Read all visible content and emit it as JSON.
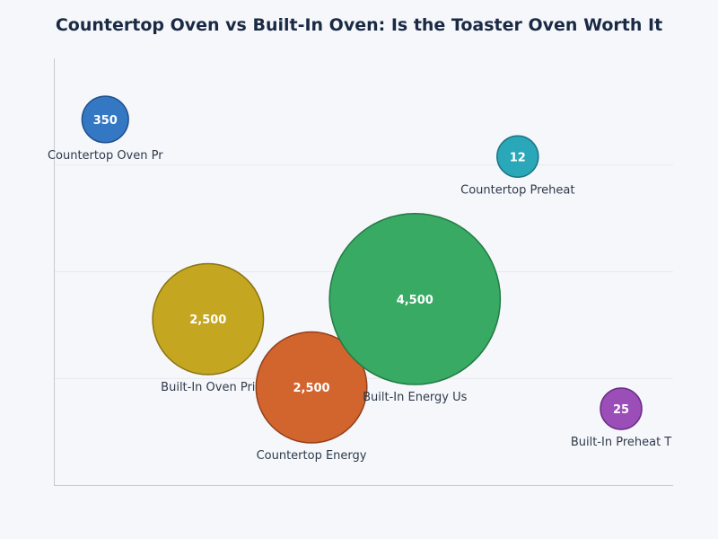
{
  "chart_data": {
    "type": "bubble",
    "title": "Countertop Oven vs Built-In Oven: Is the Toaster Oven Worth It",
    "xlabel": "",
    "ylabel": "",
    "xlim": [
      0,
      100
    ],
    "ylim": [
      0,
      100
    ],
    "grid": "horizontal",
    "points": [
      {
        "label": "Countertop Oven Pr",
        "value": 350,
        "value_label": "350",
        "x": 8.3,
        "y": 85.7,
        "color": "#3478c4",
        "stroke": "#1f4f8a"
      },
      {
        "label": "Countertop Preheat",
        "value": 12,
        "value_label": "12",
        "x": 74.9,
        "y": 77.0,
        "color": "#2aa7b8",
        "stroke": "#1b7582"
      },
      {
        "label": "Built-In Oven Pri",
        "value": 2500,
        "value_label": "2,500",
        "x": 24.9,
        "y": 38.9,
        "color": "#c4a620",
        "stroke": "#8a7410"
      },
      {
        "label": "Countertop Energy",
        "value": 2500,
        "value_label": "2,500",
        "x": 41.6,
        "y": 22.9,
        "color": "#d2642e",
        "stroke": "#93401a"
      },
      {
        "label": "Built-In Energy Us",
        "value": 4500,
        "value_label": "4,500",
        "x": 58.3,
        "y": 43.6,
        "color": "#38aa64",
        "stroke": "#227a44"
      },
      {
        "label": "Built-In Preheat T",
        "value": 25,
        "value_label": "25",
        "x": 91.6,
        "y": 17.9,
        "color": "#9b4db8",
        "stroke": "#6b2d86"
      }
    ]
  }
}
